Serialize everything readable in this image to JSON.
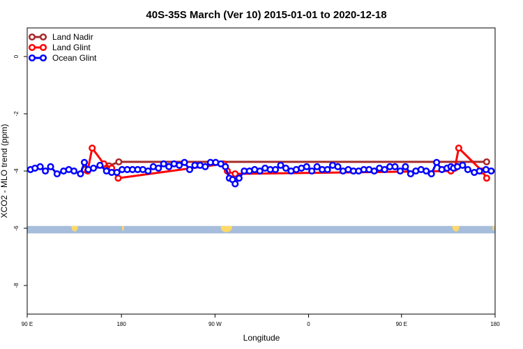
{
  "chart_data": {
    "type": "line",
    "title": "40S-35S March (Ver 10)   2015-01-01 to 2020-12-18",
    "xlabel": "Longitude",
    "ylabel": "XCO2 - MLO trend (ppm)",
    "xlim": [
      90,
      450
    ],
    "ylim": [
      -9,
      1
    ],
    "x_ticks": [
      {
        "value": 90,
        "label": "90 E"
      },
      {
        "value": 162.5,
        "label": "180"
      },
      {
        "value": 234.5,
        "label": "90 W"
      },
      {
        "value": 306.5,
        "label": "0"
      },
      {
        "value": 378,
        "label": "90 E"
      },
      {
        "value": 450,
        "label": "180"
      }
    ],
    "y_ticks": [
      0,
      -2,
      -4,
      -6,
      -8
    ],
    "legend": {
      "placement": "top-left",
      "entries": [
        {
          "name": "Land Nadir",
          "color": "#a52a2a"
        },
        {
          "name": "Land Glint",
          "color": "#ff0000"
        },
        {
          "name": "Ocean Glint",
          "color": "#0000ff"
        }
      ]
    },
    "land_band": {
      "y_top": -5.92,
      "y_bottom": -6.18,
      "color": "#a6bddb",
      "land_color": "#ffd966"
    },
    "series": [
      {
        "name": "Land Nadir",
        "color": "#a52a2a",
        "x": [
          134,
          153,
          160.5,
          443.5
        ],
        "y": [
          -3.95,
          -3.82,
          -3.68,
          -3.68
        ]
      },
      {
        "name": "Land Glint",
        "color": "#ff0000",
        "x": [
          136.5,
          140,
          149,
          155,
          160,
          241,
          244,
          247,
          250,
          416,
          419,
          422,
          440,
          443.5
        ],
        "y": [
          -4.0,
          -3.2,
          -3.75,
          -3.9,
          -4.25,
          -3.75,
          -4.0,
          -4.15,
          -4.1,
          -4.0,
          -3.9,
          -3.2,
          -4.0,
          -4.25
        ]
      },
      {
        "name": "Ocean Glint",
        "color": "#0000ff",
        "x": [
          92.5,
          96,
          100,
          104,
          108,
          113,
          118,
          122,
          126,
          131,
          134,
          137,
          141,
          146,
          151,
          155,
          159,
          163,
          167,
          171,
          175,
          179,
          183,
          187,
          191,
          195,
          199,
          203,
          207,
          211,
          215,
          219,
          223,
          227,
          231,
          235,
          239,
          242.5,
          245.5,
          248,
          250,
          253,
          257,
          261,
          265,
          269,
          273,
          277,
          281,
          285,
          289,
          293,
          297,
          301,
          305,
          309,
          313,
          317,
          321,
          325,
          329,
          333,
          337,
          341,
          345,
          349,
          353,
          357,
          361,
          365,
          369,
          373,
          377,
          381,
          385,
          389,
          393,
          397,
          401,
          405,
          409,
          413,
          416,
          418,
          421,
          425,
          429,
          434,
          438,
          443,
          447
        ],
        "y": [
          -3.95,
          -3.9,
          -3.85,
          -4.0,
          -3.85,
          -4.1,
          -4.0,
          -3.95,
          -4.0,
          -4.1,
          -3.7,
          -3.95,
          -3.9,
          -3.8,
          -4.0,
          -4.05,
          -4.05,
          -3.95,
          -3.95,
          -3.95,
          -3.95,
          -3.95,
          -4.0,
          -3.85,
          -3.9,
          -3.75,
          -3.85,
          -3.75,
          -3.8,
          -3.7,
          -3.95,
          -3.8,
          -3.8,
          -3.85,
          -3.7,
          -3.7,
          -3.75,
          -3.85,
          -4.25,
          -4.3,
          -4.45,
          -4.25,
          -4.0,
          -4.0,
          -3.95,
          -4.0,
          -3.9,
          -3.95,
          -3.95,
          -3.8,
          -3.9,
          -4.0,
          -3.95,
          -3.9,
          -3.85,
          -4.0,
          -3.85,
          -3.95,
          -3.95,
          -3.8,
          -3.85,
          -4.0,
          -3.95,
          -4.0,
          -4.0,
          -3.95,
          -3.95,
          -4.0,
          -3.9,
          -3.95,
          -3.85,
          -3.85,
          -4.0,
          -3.85,
          -4.1,
          -4.0,
          -3.95,
          -4.0,
          -4.1,
          -3.7,
          -3.95,
          -3.9,
          -3.85,
          -3.9,
          -3.85,
          -3.8,
          -3.95,
          -4.05,
          -4.0,
          -3.95,
          -4.0
        ]
      }
    ]
  }
}
